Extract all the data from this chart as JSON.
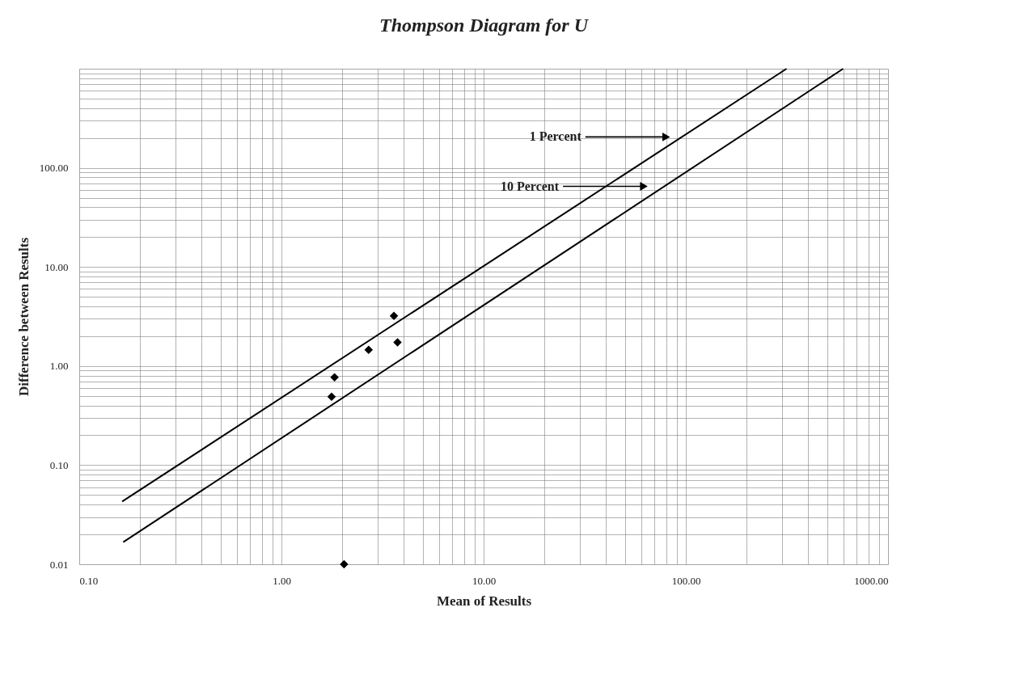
{
  "chart_data": {
    "type": "scatter",
    "title": "Thompson Diagram  for U",
    "xlabel": "Mean of  Results",
    "ylabel": "Difference between Results",
    "xlim": [
      0.1,
      1000
    ],
    "ylim": [
      0.01,
      1000
    ],
    "log": "xy",
    "grid": true,
    "marker": "diamond",
    "xticks": [
      {
        "value": 0.1,
        "label": "0.10"
      },
      {
        "value": 1,
        "label": "1.00"
      },
      {
        "value": 10,
        "label": "10.00"
      },
      {
        "value": 100,
        "label": "100.00"
      },
      {
        "value": 1000,
        "label": "1000.00"
      }
    ],
    "yticks": [
      {
        "value": 0.01,
        "label": "0.01"
      },
      {
        "value": 0.1,
        "label": "0.10"
      },
      {
        "value": 1,
        "label": "1.00"
      },
      {
        "value": 10,
        "label": "10.00"
      },
      {
        "value": 100,
        "label": "100.00"
      },
      {
        "value": 1000,
        "label": null
      }
    ],
    "series": [
      {
        "color": "#000000",
        "x": [
          1.83,
          1.77,
          2.7,
          3.6,
          3.75,
          2.04
        ],
        "values": [
          0.77,
          0.49,
          1.46,
          3.2,
          1.73,
          0.01
        ]
      },
      {
        "type": "line",
        "color": "#000000",
        "marker": "none",
        "line_style": "solid",
        "x": [
          0.163,
          315
        ],
        "values": [
          0.043,
          1000
        ]
      },
      {
        "type": "line",
        "color": "#000000",
        "marker": "none",
        "line_style": "solid",
        "x": [
          0.165,
          600
        ],
        "values": [
          0.0167,
          1000
        ]
      }
    ],
    "annotations": [
      {
        "text": "1 Percent",
        "x": 80,
        "y": 205
      },
      {
        "text": "10 Percent",
        "x": 62,
        "y": 65
      }
    ]
  }
}
